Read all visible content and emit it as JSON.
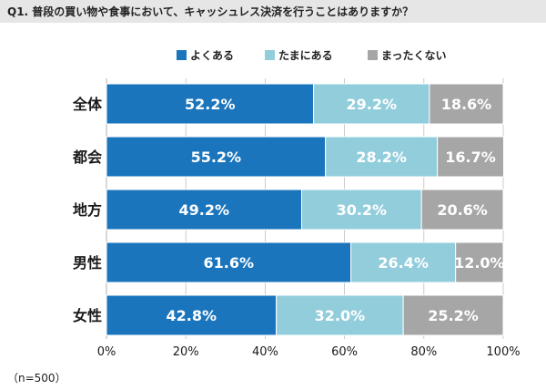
{
  "title": "Q1. 普段の買い物や食事において、キャッシュレス決済を行うことはありますか？",
  "note": "（n=500）",
  "colors": {
    "series": [
      "#1b75bc",
      "#92cddc",
      "#a6a6a6"
    ],
    "title_bg": "#e6e6e6",
    "grid": "#bfbfbf"
  },
  "chart_data": {
    "type": "bar",
    "orientation": "horizontal",
    "stacked": true,
    "categories": [
      "全体",
      "都会",
      "地方",
      "男性",
      "女性"
    ],
    "series": [
      {
        "name": "よくある",
        "values": [
          52.2,
          55.2,
          49.2,
          61.6,
          42.8
        ]
      },
      {
        "name": "たまにある",
        "values": [
          29.2,
          28.2,
          30.2,
          26.4,
          32.0
        ]
      },
      {
        "name": "まったくない",
        "values": [
          18.6,
          16.7,
          20.6,
          12.0,
          25.2
        ]
      }
    ],
    "xlim": [
      0,
      100
    ],
    "xticks": [
      "0%",
      "20%",
      "40%",
      "60%",
      "80%",
      "100%"
    ],
    "data_labels": [
      [
        "52.2%",
        "29.2%",
        "18.6%"
      ],
      [
        "55.2%",
        "28.2%",
        "16.7%"
      ],
      [
        "49.2%",
        "30.2%",
        "20.6%"
      ],
      [
        "61.6%",
        "26.4%",
        "12.0%"
      ],
      [
        "42.8%",
        "32.0%",
        "25.2%"
      ]
    ],
    "legend": "top"
  }
}
